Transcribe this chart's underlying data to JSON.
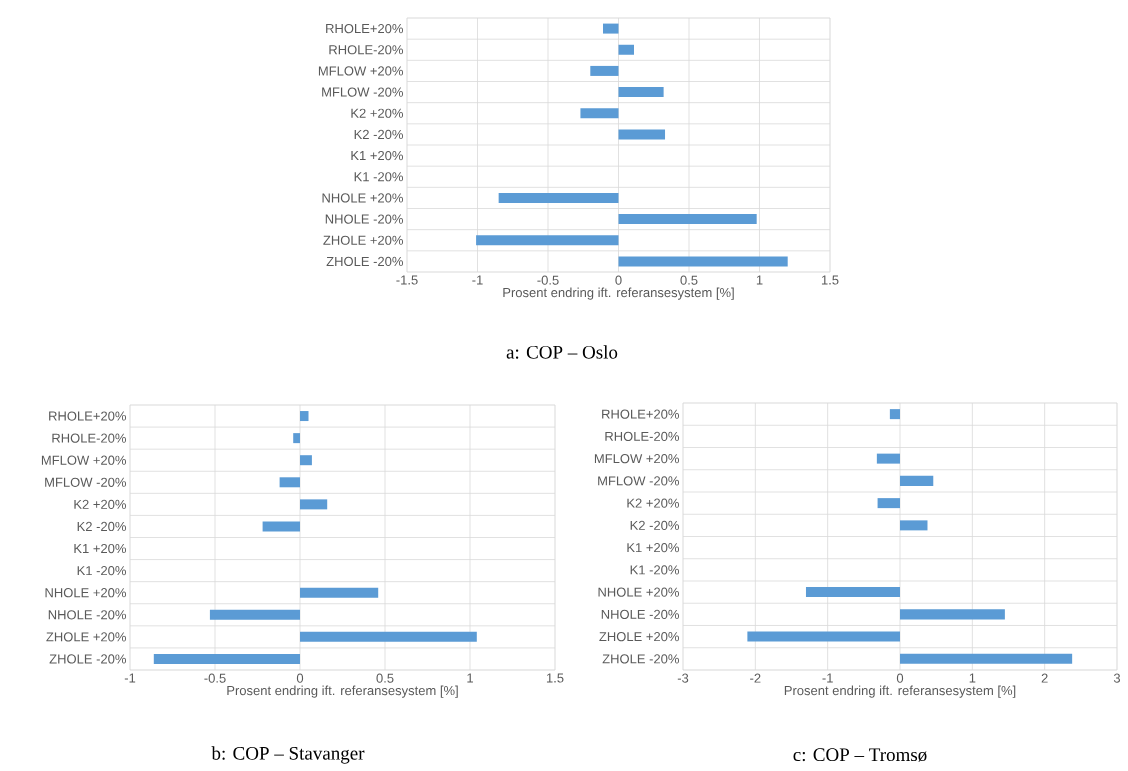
{
  "chart_data": [
    {
      "type": "bar",
      "orientation": "horizontal",
      "title": "a: COP – Oslo",
      "xlabel": "Prosent endring ift. referansesystem [%]",
      "categories": [
        "RHOLE+20%",
        "RHOLE-20%",
        "MFLOW +20%",
        "MFLOW -20%",
        "K2 +20%",
        "K2 -20%",
        "K1 +20%",
        "K1 -20%",
        "NHOLE +20%",
        "NHOLE -20%",
        "ZHOLE +20%",
        "ZHOLE -20%"
      ],
      "values": [
        -0.11,
        0.11,
        -0.2,
        0.32,
        -0.27,
        0.33,
        0,
        0,
        -0.85,
        0.98,
        -1.01,
        1.2
      ],
      "color": "#5b9bd5",
      "xlim": [
        -1.5,
        1.5
      ],
      "xticks": [
        -1.5,
        -1,
        -0.5,
        0,
        0.5,
        1,
        1.5
      ],
      "grid": true
    },
    {
      "type": "bar",
      "orientation": "horizontal",
      "title": "b: COP – Stavanger",
      "xlabel": "Prosent endring ift. referansesystem [%]",
      "categories": [
        "RHOLE+20%",
        "RHOLE-20%",
        "MFLOW +20%",
        "MFLOW -20%",
        "K2 +20%",
        "K2 -20%",
        "K1 +20%",
        "K1 -20%",
        "NHOLE +20%",
        "NHOLE -20%",
        "ZHOLE +20%",
        "ZHOLE -20%"
      ],
      "values": [
        0.05,
        -0.04,
        0.07,
        -0.12,
        0.16,
        -0.22,
        0,
        0,
        0.46,
        -0.53,
        1.04,
        -0.86
      ],
      "color": "#5b9bd5",
      "xlim": [
        -1,
        1.5
      ],
      "xticks": [
        -1,
        -0.5,
        0,
        0.5,
        1,
        1.5
      ],
      "grid": true
    },
    {
      "type": "bar",
      "orientation": "horizontal",
      "title": "c: COP – Tromsø",
      "xlabel": "Prosent endring ift. referansesystem [%]",
      "categories": [
        "RHOLE+20%",
        "RHOLE-20%",
        "MFLOW +20%",
        "MFLOW -20%",
        "K2 +20%",
        "K2 -20%",
        "K1 +20%",
        "K1 -20%",
        "NHOLE +20%",
        "NHOLE -20%",
        "ZHOLE +20%",
        "ZHOLE -20%"
      ],
      "values": [
        -0.14,
        0,
        -0.32,
        0.46,
        -0.31,
        0.38,
        0,
        0,
        -1.3,
        1.45,
        -2.11,
        2.38
      ],
      "color": "#5b9bd5",
      "xlim": [
        -3,
        3
      ],
      "xticks": [
        -3,
        -2,
        -1,
        0,
        1,
        2,
        3
      ],
      "grid": true
    }
  ]
}
